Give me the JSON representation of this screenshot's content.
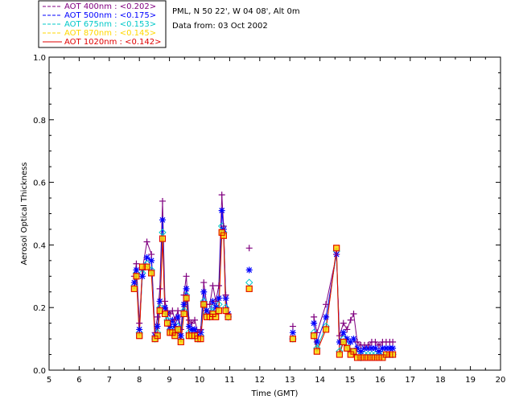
{
  "chart_data": {
    "type": "line",
    "header_line1": "PML, N 50 22', W 04 08', Alt 0m",
    "header_line2": "Data from: 03 Oct 2002",
    "xlabel": "Time (GMT)",
    "ylabel": "Aerosol Optical Thickness",
    "xlim": [
      5,
      20
    ],
    "ylim": [
      0,
      1.0
    ],
    "xticks": [
      5,
      6,
      7,
      8,
      9,
      10,
      11,
      12,
      13,
      14,
      15,
      16,
      17,
      18,
      19,
      20
    ],
    "yticks": [
      "0.0",
      "0.2",
      "0.4",
      "0.6",
      "0.8",
      "1.0"
    ],
    "ytick_values": [
      0,
      0.2,
      0.4,
      0.6,
      0.8,
      1.0
    ],
    "legend_position": "top-left",
    "x": [
      7.83,
      7.9,
      8.0,
      8.1,
      8.25,
      8.4,
      8.52,
      8.6,
      8.68,
      8.77,
      8.85,
      8.93,
      9.02,
      9.1,
      9.18,
      9.28,
      9.38,
      9.48,
      9.56,
      9.65,
      9.74,
      9.84,
      9.94,
      10.04,
      10.14,
      10.24,
      10.34,
      10.44,
      10.54,
      10.64,
      10.74,
      10.8,
      10.87,
      10.95,
      11.65,
      13.1,
      13.8,
      13.9,
      14.2,
      14.55,
      14.65,
      14.78,
      14.9,
      15.02,
      15.12,
      15.24,
      15.36,
      15.48,
      15.6,
      15.72,
      15.84,
      15.96,
      16.08,
      16.2,
      16.32,
      16.42
    ],
    "series": [
      {
        "name": "AOT  400nm : <0.202>",
        "color": "#800080",
        "marker": "plus",
        "values": [
          0.3,
          0.34,
          0.15,
          0.32,
          0.41,
          0.37,
          0.12,
          0.17,
          0.26,
          0.54,
          0.22,
          0.19,
          0.18,
          0.19,
          0.16,
          0.19,
          0.13,
          0.24,
          0.3,
          0.16,
          0.15,
          0.16,
          0.12,
          0.13,
          0.28,
          0.21,
          0.21,
          0.27,
          0.22,
          0.27,
          0.56,
          0.46,
          0.24,
          0.18,
          0.39,
          0.14,
          0.17,
          0.12,
          0.21,
          0.37,
          0.11,
          0.15,
          0.13,
          0.16,
          0.18,
          0.09,
          0.08,
          0.08,
          0.08,
          0.09,
          0.09,
          0.08,
          0.09,
          0.09,
          0.09,
          0.09
        ]
      },
      {
        "name": "AOT  500nm : <0.175>",
        "color": "#0000ff",
        "marker": "asterisk",
        "values": [
          0.28,
          0.32,
          0.13,
          0.3,
          0.36,
          0.35,
          0.11,
          0.14,
          0.22,
          0.48,
          0.2,
          0.18,
          0.14,
          0.16,
          0.14,
          0.17,
          0.11,
          0.21,
          0.26,
          0.14,
          0.13,
          0.13,
          0.11,
          0.12,
          0.25,
          0.19,
          0.18,
          0.22,
          0.2,
          0.23,
          0.51,
          0.45,
          0.23,
          0.18,
          0.32,
          0.12,
          0.15,
          0.09,
          0.17,
          0.37,
          0.09,
          0.12,
          0.1,
          0.09,
          0.1,
          0.07,
          0.06,
          0.07,
          0.07,
          0.07,
          0.07,
          0.06,
          0.07,
          0.07,
          0.07,
          0.07
        ]
      },
      {
        "name": "AOT  675nm : <0.153>",
        "color": "#00c8c8",
        "marker": "diamond",
        "values": [
          0.27,
          0.31,
          0.12,
          0.31,
          0.34,
          0.32,
          0.1,
          0.12,
          0.2,
          0.44,
          0.19,
          0.16,
          0.13,
          0.13,
          0.12,
          0.14,
          0.1,
          0.19,
          0.24,
          0.12,
          0.11,
          0.12,
          0.1,
          0.11,
          0.22,
          0.18,
          0.17,
          0.2,
          0.18,
          0.21,
          0.46,
          0.44,
          0.2,
          0.17,
          0.28,
          0.1,
          0.12,
          0.07,
          0.14,
          0.38,
          0.06,
          0.1,
          0.08,
          0.06,
          0.06,
          0.05,
          0.04,
          0.05,
          0.05,
          0.05,
          0.05,
          0.05,
          0.05,
          0.05,
          0.05,
          0.05
        ]
      },
      {
        "name": "AOT  870nm : <0.145>",
        "color": "#ffd700",
        "marker": "square",
        "values": [
          0.26,
          0.3,
          0.11,
          0.33,
          0.33,
          0.31,
          0.1,
          0.11,
          0.19,
          0.42,
          0.18,
          0.15,
          0.12,
          0.12,
          0.11,
          0.13,
          0.09,
          0.18,
          0.23,
          0.11,
          0.11,
          0.11,
          0.1,
          0.1,
          0.21,
          0.17,
          0.17,
          0.18,
          0.17,
          0.19,
          0.44,
          0.43,
          0.19,
          0.17,
          0.26,
          0.1,
          0.11,
          0.06,
          0.13,
          0.39,
          0.05,
          0.09,
          0.07,
          0.05,
          0.06,
          0.04,
          0.04,
          0.04,
          0.04,
          0.04,
          0.04,
          0.04,
          0.04,
          0.05,
          0.05,
          0.05
        ]
      },
      {
        "name": "AOT 1020nm : <0.142>",
        "color": "#e00000",
        "marker": "square",
        "values": [
          0.26,
          0.3,
          0.11,
          0.33,
          0.33,
          0.31,
          0.1,
          0.11,
          0.19,
          0.42,
          0.18,
          0.15,
          0.12,
          0.12,
          0.11,
          0.13,
          0.09,
          0.18,
          0.23,
          0.11,
          0.11,
          0.11,
          0.1,
          0.1,
          0.21,
          0.17,
          0.17,
          0.18,
          0.17,
          0.19,
          0.44,
          0.43,
          0.19,
          0.17,
          0.26,
          0.1,
          0.11,
          0.06,
          0.13,
          0.39,
          0.05,
          0.09,
          0.07,
          0.05,
          0.06,
          0.04,
          0.04,
          0.04,
          0.04,
          0.04,
          0.04,
          0.04,
          0.04,
          0.05,
          0.05,
          0.05
        ]
      }
    ],
    "grid": false
  }
}
